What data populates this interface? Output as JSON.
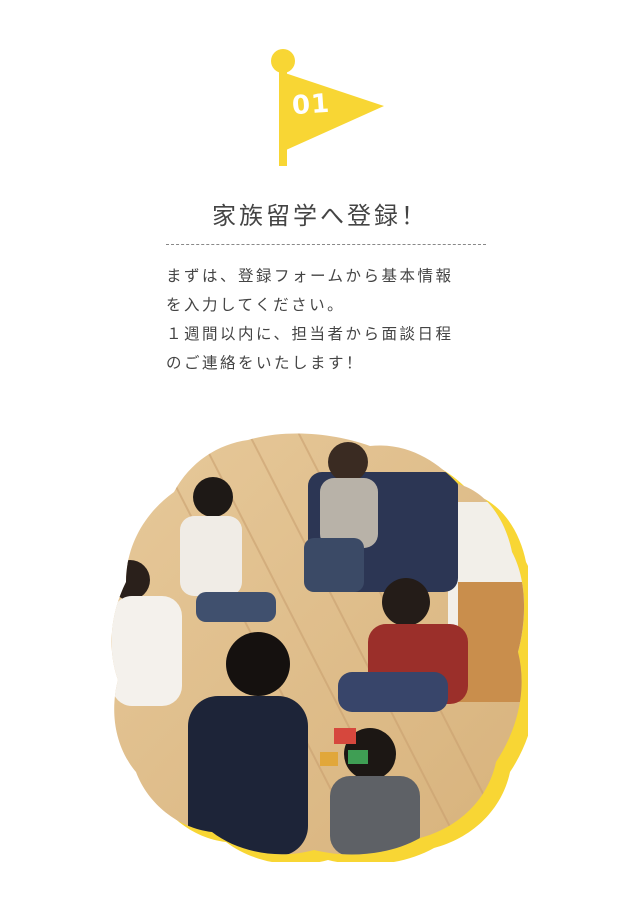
{
  "step": {
    "number": "01"
  },
  "section": {
    "title": "家族留学へ登録！"
  },
  "body": {
    "lines": [
      "まずは、登録フォームから基本情報",
      "を入力してください。",
      "１週間以内に、担当者から面談日程",
      "のご連絡をいたします！"
    ]
  },
  "colors": {
    "accent": "#f8d634",
    "text": "#444444"
  }
}
